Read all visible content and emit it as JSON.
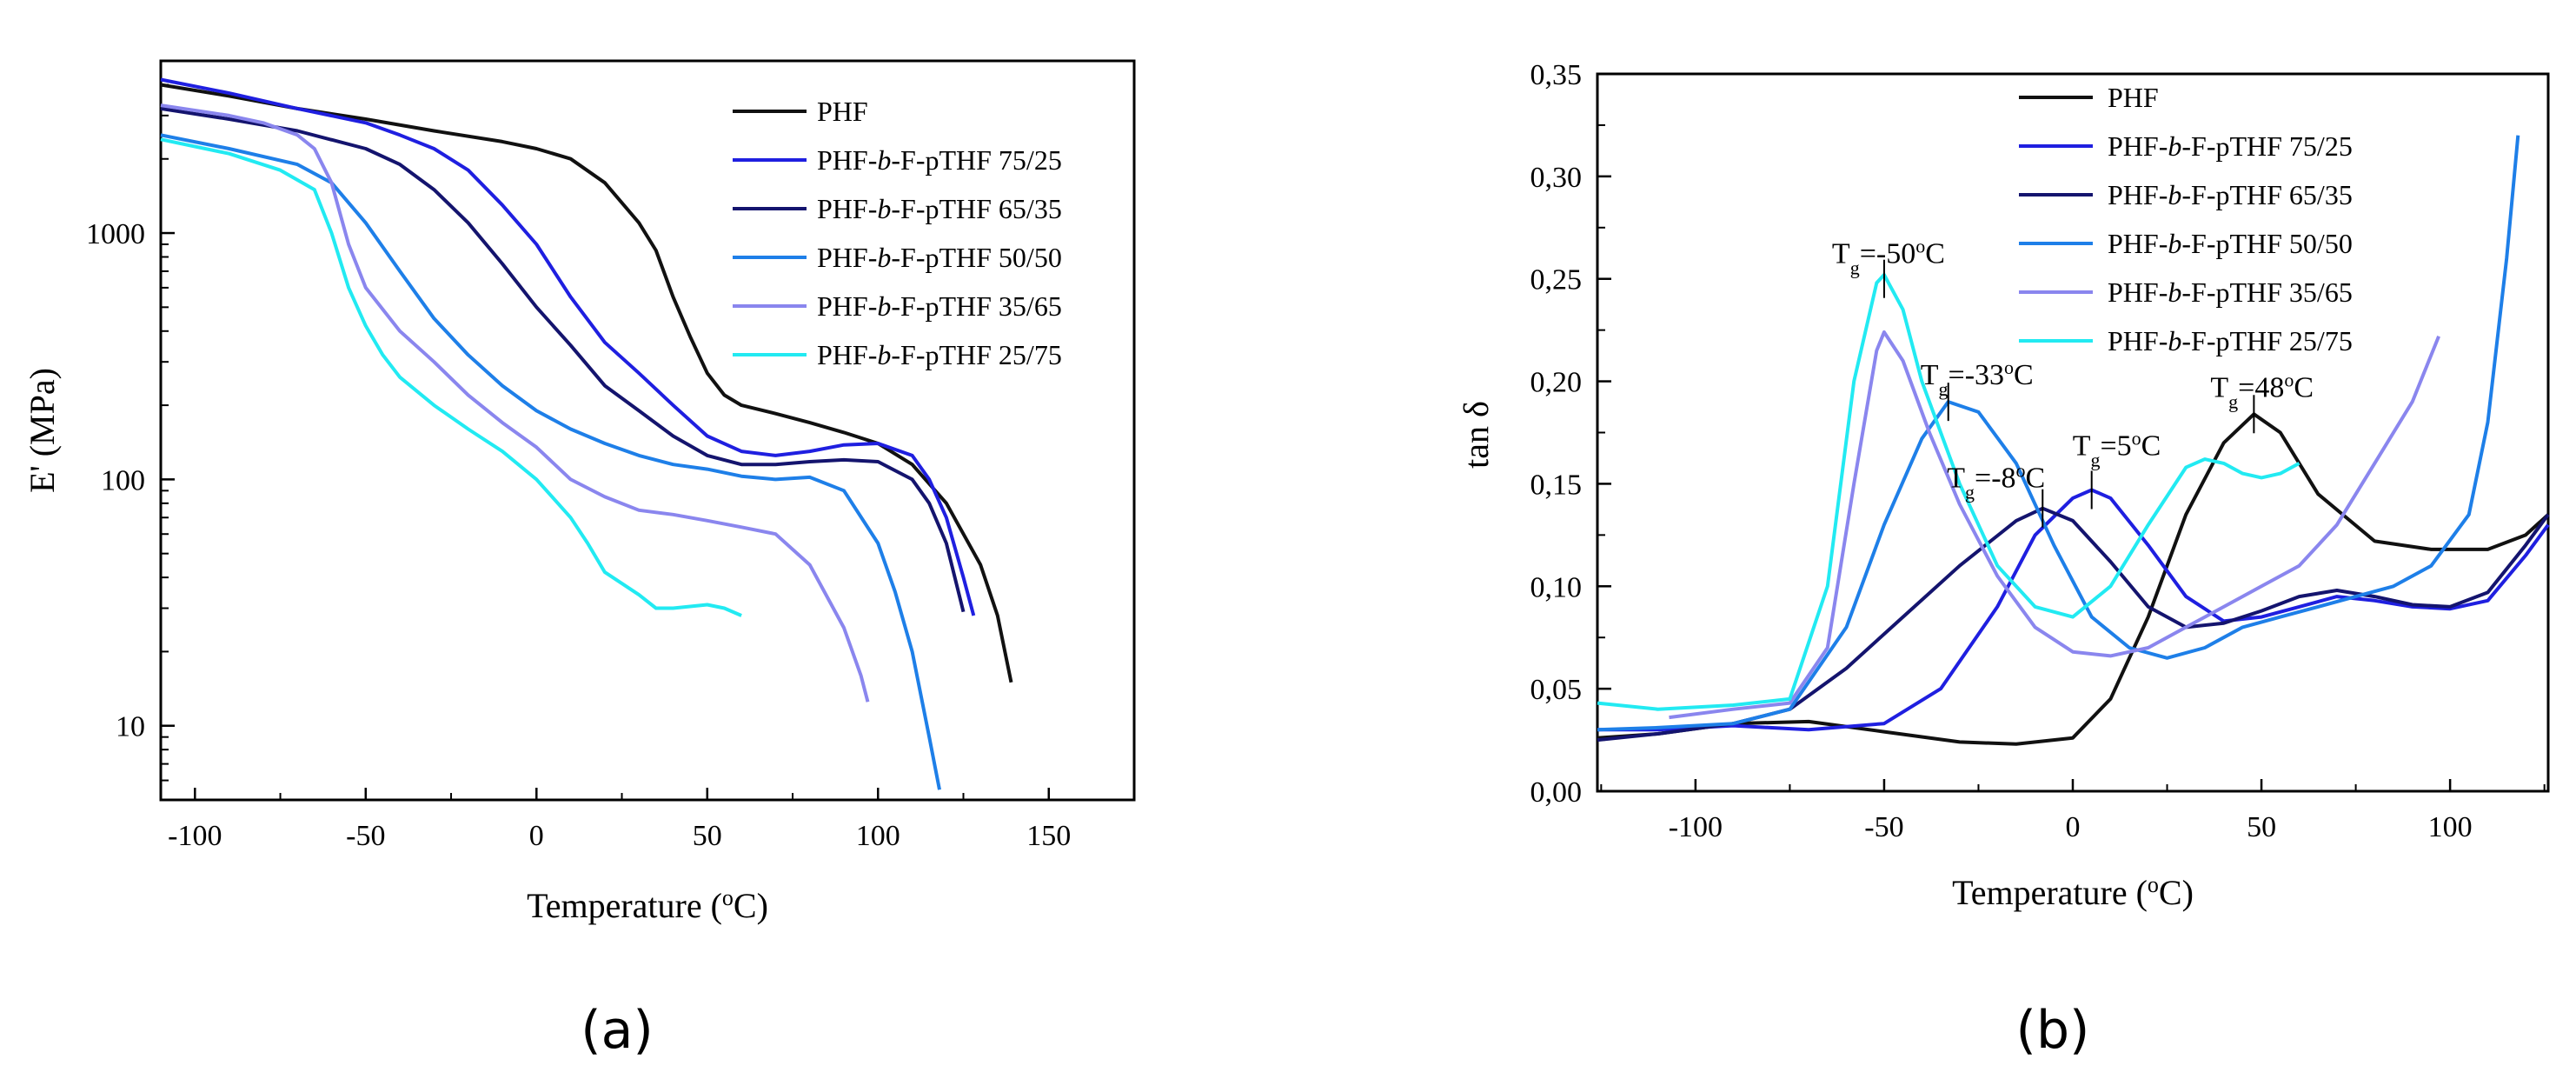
{
  "colors": {
    "PHF": "#111111",
    "75/25": "#1f1fe0",
    "65/35": "#14146e",
    "50/50": "#1e7fe8",
    "35/65": "#8a86ee",
    "25/75": "#22eaf2"
  },
  "panel_labels": [
    "(a)",
    "(b)"
  ],
  "chart_data": [
    {
      "type": "line",
      "panel": "(a)",
      "xlabel": "Temperature (°C)",
      "xlabel_parts": {
        "pre": "Temperature (",
        "sup": "o",
        "post": "C)"
      },
      "ylabel": "E' (MPa)",
      "yscale": "log",
      "xlim": [
        -110,
        175
      ],
      "ylim": [
        5,
        5000
      ],
      "xticks": [
        -100,
        -50,
        0,
        50,
        100,
        150
      ],
      "xtick_labels": [
        "-100",
        "-50",
        "0",
        "50",
        "100",
        "150"
      ],
      "yticks": [
        10,
        100,
        1000
      ],
      "ytick_labels": [
        "10",
        "100",
        "1000"
      ],
      "legend_position": "top-right",
      "series": [
        {
          "name": "PHF",
          "legend": {
            "pre": "PHF",
            "ital": "",
            "post": ""
          },
          "color_key": "PHF",
          "x": [
            -110,
            -90,
            -70,
            -50,
            -30,
            -10,
            0,
            10,
            20,
            30,
            35,
            40,
            45,
            50,
            55,
            60,
            70,
            80,
            90,
            100,
            110,
            120,
            130,
            135,
            139
          ],
          "y": [
            4000,
            3600,
            3200,
            2900,
            2600,
            2350,
            2200,
            2000,
            1600,
            1100,
            850,
            550,
            380,
            270,
            220,
            200,
            185,
            170,
            155,
            140,
            115,
            80,
            45,
            28,
            15
          ]
        },
        {
          "name": "PHF-b-F-pTHF 75/25",
          "legend": {
            "pre": "PHF-",
            "ital": "b",
            "post": "-F-pTHF  75/25"
          },
          "color_key": "75/25",
          "x": [
            -110,
            -90,
            -70,
            -50,
            -40,
            -30,
            -20,
            -10,
            0,
            10,
            20,
            30,
            40,
            50,
            60,
            70,
            80,
            90,
            100,
            110,
            115,
            120,
            125,
            128
          ],
          "y": [
            4200,
            3700,
            3200,
            2800,
            2500,
            2200,
            1800,
            1300,
            900,
            550,
            360,
            270,
            200,
            150,
            130,
            125,
            130,
            138,
            140,
            125,
            100,
            70,
            40,
            28
          ]
        },
        {
          "name": "PHF-b-F-pTHF 65/35",
          "legend": {
            "pre": "PHF-",
            "ital": "b",
            "post": "-F-pTHF  65/35"
          },
          "color_key": "65/35",
          "x": [
            -110,
            -90,
            -70,
            -50,
            -40,
            -30,
            -20,
            -10,
            0,
            10,
            20,
            30,
            40,
            50,
            60,
            70,
            80,
            90,
            100,
            110,
            115,
            120,
            125
          ],
          "y": [
            3200,
            2900,
            2600,
            2200,
            1900,
            1500,
            1100,
            750,
            500,
            350,
            240,
            190,
            150,
            125,
            115,
            115,
            118,
            120,
            118,
            100,
            80,
            55,
            29
          ]
        },
        {
          "name": "PHF-b-F-pTHF 50/50",
          "legend": {
            "pre": "PHF-",
            "ital": "b",
            "post": "-F-pTHF  50/50"
          },
          "color_key": "50/50",
          "x": [
            -110,
            -90,
            -70,
            -60,
            -50,
            -40,
            -30,
            -20,
            -10,
            0,
            10,
            20,
            30,
            40,
            50,
            60,
            70,
            80,
            90,
            100,
            105,
            110,
            115,
            118
          ],
          "y": [
            2500,
            2200,
            1900,
            1600,
            1100,
            700,
            450,
            320,
            240,
            190,
            160,
            140,
            125,
            115,
            110,
            103,
            100,
            102,
            90,
            55,
            35,
            20,
            9,
            5.5
          ]
        },
        {
          "name": "PHF-b-F-pTHF 35/65",
          "legend": {
            "pre": "PHF-",
            "ital": "b",
            "post": "-F-pTHF  35/65"
          },
          "color_key": "35/65",
          "x": [
            -110,
            -90,
            -80,
            -70,
            -65,
            -60,
            -55,
            -50,
            -40,
            -30,
            -20,
            -10,
            0,
            10,
            20,
            30,
            40,
            50,
            60,
            70,
            80,
            90,
            95,
            97
          ],
          "y": [
            3300,
            3000,
            2800,
            2500,
            2200,
            1600,
            900,
            600,
            400,
            300,
            220,
            170,
            135,
            100,
            85,
            75,
            72,
            68,
            64,
            60,
            45,
            25,
            16,
            12.5
          ]
        },
        {
          "name": "PHF-b-F-pTHF 25/75",
          "legend": {
            "pre": "PHF-",
            "ital": "b",
            "post": "-F-pTHF  25/75"
          },
          "color_key": "25/75",
          "x": [
            -110,
            -90,
            -75,
            -65,
            -60,
            -55,
            -50,
            -45,
            -40,
            -30,
            -20,
            -10,
            0,
            10,
            15,
            20,
            30,
            35,
            40,
            45,
            50,
            55,
            60
          ],
          "y": [
            2400,
            2100,
            1800,
            1500,
            1000,
            600,
            420,
            320,
            260,
            200,
            160,
            130,
            100,
            70,
            55,
            42,
            34,
            30,
            30,
            30.5,
            31,
            30,
            28
          ]
        }
      ]
    },
    {
      "type": "line",
      "panel": "(b)",
      "xlabel": "Temperature (°C)",
      "xlabel_parts": {
        "pre": "Temperature (",
        "sup": "o",
        "post": "C)"
      },
      "ylabel": "tan δ",
      "xlim": [
        -126,
        126
      ],
      "ylim": [
        0,
        0.35
      ],
      "xticks": [
        -100,
        -50,
        0,
        50,
        100
      ],
      "xtick_labels": [
        "-100",
        "-50",
        "0",
        "50",
        "100"
      ],
      "yticks": [
        0,
        0.05,
        0.1,
        0.15,
        0.2,
        0.25,
        0.3,
        0.35
      ],
      "ytick_labels": [
        "0,00",
        "0,05",
        "0,10",
        "0,15",
        "0,20",
        "0,25",
        "0,30",
        "0,35"
      ],
      "legend_position": "top-right",
      "annotations": [
        {
          "label": {
            "pre": "T",
            "sub": "g",
            "post": "=-50",
            "sup": "o",
            "end": "C"
          },
          "x": -50,
          "y": 0.25
        },
        {
          "label": {
            "pre": "T",
            "sub": "g",
            "post": "=-33",
            "sup": "o",
            "end": "C"
          },
          "x": -33,
          "y": 0.19
        },
        {
          "label": {
            "pre": "T",
            "sub": "g",
            "post": "=-8",
            "sup": "o",
            "end": "C"
          },
          "x": -8,
          "y": 0.138
        },
        {
          "label": {
            "pre": "T",
            "sub": "g",
            "post": "=5",
            "sup": "o",
            "end": "C"
          },
          "x": 5,
          "y": 0.147
        },
        {
          "label": {
            "pre": "T",
            "sub": "g",
            "post": "=48",
            "sup": "o",
            "end": "C"
          },
          "x": 48,
          "y": 0.184
        }
      ],
      "series": [
        {
          "name": "PHF",
          "legend": {
            "pre": "PHF",
            "ital": "",
            "post": ""
          },
          "color_key": "PHF",
          "x": [
            -126,
            -110,
            -90,
            -70,
            -50,
            -30,
            -15,
            0,
            10,
            20,
            30,
            40,
            48,
            55,
            65,
            80,
            95,
            110,
            120,
            126
          ],
          "y": [
            0.026,
            0.028,
            0.033,
            0.034,
            0.029,
            0.024,
            0.023,
            0.026,
            0.045,
            0.085,
            0.135,
            0.17,
            0.184,
            0.175,
            0.145,
            0.122,
            0.118,
            0.118,
            0.125,
            0.135
          ]
        },
        {
          "name": "PHF-b-F-pTHF 75/25",
          "legend": {
            "pre": "PHF-",
            "ital": "b",
            "post": "-F-pTHF  75/25"
          },
          "color_key": "75/25",
          "x": [
            -126,
            -110,
            -90,
            -70,
            -50,
            -35,
            -20,
            -10,
            0,
            5,
            10,
            20,
            30,
            40,
            50,
            60,
            70,
            80,
            90,
            100,
            110,
            120,
            126
          ],
          "y": [
            0.03,
            0.03,
            0.032,
            0.03,
            0.033,
            0.05,
            0.09,
            0.125,
            0.143,
            0.147,
            0.143,
            0.12,
            0.095,
            0.083,
            0.085,
            0.09,
            0.095,
            0.093,
            0.09,
            0.089,
            0.093,
            0.115,
            0.13
          ]
        },
        {
          "name": "PHF-b-F-pTHF 65/35",
          "legend": {
            "pre": "PHF-",
            "ital": "b",
            "post": "-F-pTHF  65/35"
          },
          "color_key": "65/35",
          "x": [
            -126,
            -110,
            -90,
            -75,
            -60,
            -45,
            -30,
            -15,
            -8,
            0,
            10,
            20,
            30,
            40,
            50,
            60,
            70,
            80,
            90,
            100,
            110,
            120,
            126
          ],
          "y": [
            0.025,
            0.028,
            0.033,
            0.04,
            0.06,
            0.085,
            0.11,
            0.132,
            0.138,
            0.132,
            0.112,
            0.09,
            0.08,
            0.082,
            0.088,
            0.095,
            0.098,
            0.095,
            0.091,
            0.09,
            0.097,
            0.12,
            0.135
          ]
        },
        {
          "name": "PHF-b-F-pTHF 50/50",
          "legend": {
            "pre": "PHF-",
            "ital": "b",
            "post": "-F-pTHF  50/50"
          },
          "color_key": "50/50",
          "x": [
            -126,
            -110,
            -90,
            -75,
            -60,
            -50,
            -40,
            -33,
            -25,
            -15,
            -5,
            5,
            15,
            25,
            35,
            45,
            55,
            65,
            75,
            85,
            95,
            105,
            110,
            115,
            118
          ],
          "y": [
            0.03,
            0.031,
            0.033,
            0.04,
            0.08,
            0.13,
            0.172,
            0.19,
            0.185,
            0.16,
            0.12,
            0.085,
            0.07,
            0.065,
            0.07,
            0.08,
            0.085,
            0.09,
            0.095,
            0.1,
            0.11,
            0.135,
            0.18,
            0.26,
            0.32
          ]
        },
        {
          "name": "PHF-b-F-pTHF 35/65",
          "legend": {
            "pre": "PHF-",
            "ital": "b",
            "post": "-F-pTHF  35/65"
          },
          "color_key": "35/65",
          "x": [
            -107,
            -90,
            -75,
            -65,
            -58,
            -52,
            -50,
            -45,
            -38,
            -30,
            -20,
            -10,
            0,
            10,
            20,
            30,
            40,
            50,
            60,
            70,
            80,
            90,
            97
          ],
          "y": [
            0.036,
            0.04,
            0.043,
            0.07,
            0.15,
            0.215,
            0.224,
            0.21,
            0.175,
            0.14,
            0.105,
            0.08,
            0.068,
            0.066,
            0.07,
            0.08,
            0.09,
            0.1,
            0.11,
            0.13,
            0.16,
            0.19,
            0.222
          ]
        },
        {
          "name": "PHF-b-F-pTHF 25/75",
          "legend": {
            "pre": "PHF-",
            "ital": "b",
            "post": "-F-pTHF  25/75"
          },
          "color_key": "25/75",
          "x": [
            -126,
            -110,
            -90,
            -75,
            -65,
            -58,
            -52,
            -50,
            -45,
            -40,
            -30,
            -20,
            -10,
            0,
            10,
            20,
            30,
            35,
            40,
            45,
            50,
            55,
            60
          ],
          "y": [
            0.043,
            0.04,
            0.042,
            0.045,
            0.1,
            0.2,
            0.248,
            0.252,
            0.235,
            0.2,
            0.15,
            0.11,
            0.09,
            0.085,
            0.1,
            0.13,
            0.158,
            0.162,
            0.16,
            0.155,
            0.153,
            0.155,
            0.16
          ]
        }
      ]
    }
  ]
}
